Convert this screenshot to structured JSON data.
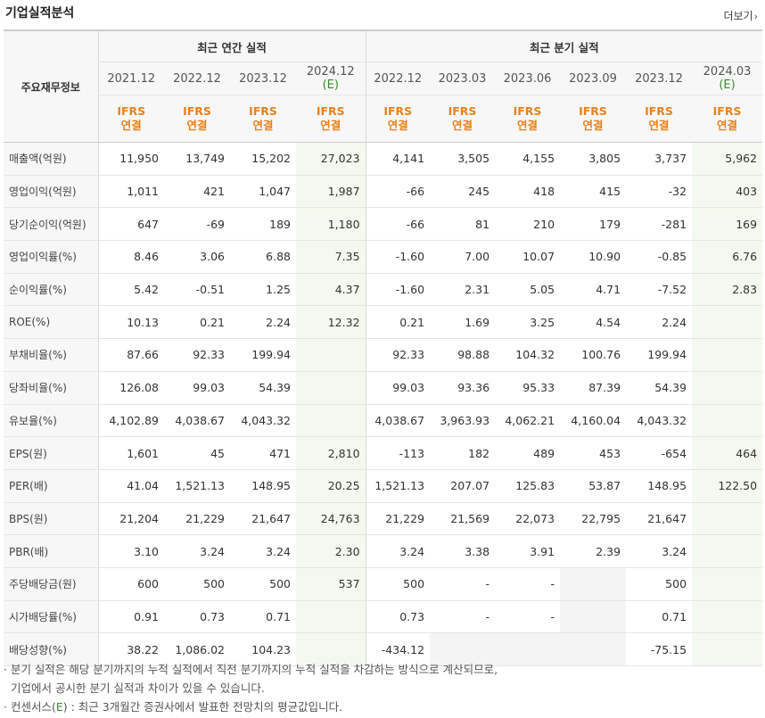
{
  "title": "기업실적분석",
  "more_label": "더보기",
  "header": {
    "corner_label": "주요재무정보",
    "annual_group": "최근 연간 실적",
    "quarter_group": "최근 분기 실적",
    "periods": [
      {
        "date": "2021.12",
        "est": ""
      },
      {
        "date": "2022.12",
        "est": ""
      },
      {
        "date": "2023.12",
        "est": ""
      },
      {
        "date": "2024.12",
        "est": "(E)"
      },
      {
        "date": "2022.12",
        "est": ""
      },
      {
        "date": "2023.03",
        "est": ""
      },
      {
        "date": "2023.06",
        "est": ""
      },
      {
        "date": "2023.09",
        "est": ""
      },
      {
        "date": "2023.12",
        "est": ""
      },
      {
        "date": "2024.03",
        "est": "(E)"
      }
    ],
    "basis_line1": "IFRS",
    "basis_line2": "연결"
  },
  "rows": [
    {
      "label": "매출액(억원)",
      "values": [
        "11,950",
        "13,749",
        "15,202",
        "27,023",
        "4,141",
        "3,505",
        "4,155",
        "3,805",
        "3,737",
        "5,962"
      ]
    },
    {
      "label": "영업이익(억원)",
      "values": [
        "1,011",
        "421",
        "1,047",
        "1,987",
        "-66",
        "245",
        "418",
        "415",
        "-32",
        "403"
      ]
    },
    {
      "label": "당기순이익(억원)",
      "values": [
        "647",
        "-69",
        "189",
        "1,180",
        "-66",
        "81",
        "210",
        "179",
        "-281",
        "169"
      ]
    },
    {
      "label": "영업이익률(%)",
      "values": [
        "8.46",
        "3.06",
        "6.88",
        "7.35",
        "-1.60",
        "7.00",
        "10.07",
        "10.90",
        "-0.85",
        "6.76"
      ]
    },
    {
      "label": "순이익률(%)",
      "values": [
        "5.42",
        "-0.51",
        "1.25",
        "4.37",
        "-1.60",
        "2.31",
        "5.05",
        "4.71",
        "-7.52",
        "2.83"
      ]
    },
    {
      "label": "ROE(%)",
      "values": [
        "10.13",
        "0.21",
        "2.24",
        "12.32",
        "0.21",
        "1.69",
        "3.25",
        "4.54",
        "2.24",
        ""
      ]
    },
    {
      "label": "부채비율(%)",
      "values": [
        "87.66",
        "92.33",
        "199.94",
        "",
        "92.33",
        "98.88",
        "104.32",
        "100.76",
        "199.94",
        ""
      ]
    },
    {
      "label": "당좌비율(%)",
      "values": [
        "126.08",
        "99.03",
        "54.39",
        "",
        "99.03",
        "93.36",
        "95.33",
        "87.39",
        "54.39",
        ""
      ]
    },
    {
      "label": "유보율(%)",
      "values": [
        "4,102.89",
        "4,038.67",
        "4,043.32",
        "",
        "4,038.67",
        "3,963.93",
        "4,062.21",
        "4,160.04",
        "4,043.32",
        ""
      ]
    },
    {
      "label": "EPS(원)",
      "values": [
        "1,601",
        "45",
        "471",
        "2,810",
        "-113",
        "182",
        "489",
        "453",
        "-654",
        "464"
      ]
    },
    {
      "label": "PER(배)",
      "values": [
        "41.04",
        "1,521.13",
        "148.95",
        "20.25",
        "1,521.13",
        "207.07",
        "125.83",
        "53.87",
        "148.95",
        "122.50"
      ]
    },
    {
      "label": "BPS(원)",
      "values": [
        "21,204",
        "21,229",
        "21,647",
        "24,763",
        "21,229",
        "21,569",
        "22,073",
        "22,795",
        "21,647",
        ""
      ]
    },
    {
      "label": "PBR(배)",
      "values": [
        "3.10",
        "3.24",
        "3.24",
        "2.30",
        "3.24",
        "3.38",
        "3.91",
        "2.39",
        "3.24",
        ""
      ]
    },
    {
      "label": "주당배당금(원)",
      "values": [
        "600",
        "500",
        "500",
        "537",
        "500",
        "-",
        "-",
        "",
        "500",
        ""
      ]
    },
    {
      "label": "시가배당률(%)",
      "values": [
        "0.91",
        "0.73",
        "0.71",
        "",
        "0.73",
        "-",
        "-",
        "",
        "0.71",
        ""
      ]
    },
    {
      "label": "배당성향(%)",
      "values": [
        "38.22",
        "1,086.02",
        "104.23",
        "",
        "-434.12",
        "",
        "",
        "",
        "-75.15",
        ""
      ]
    }
  ],
  "notes": {
    "line1": "· 분기 실적은 해당 분기까지의 누적 실적에서 직전 분기까지의 누적 실적을 차감하는 방식으로 계산되므로,",
    "line2": "기업에서 공시한 분기 실적과 차이가 있을 수 있습니다.",
    "line3_prefix": "· 컨센서스(",
    "line3_e": "E",
    "line3_suffix": ") : 최근 3개월간 증권사에서 발표한 전망치의 평균값입니다."
  },
  "colors": {
    "negative": "#e0201c",
    "basis": "#e8811b",
    "estimate_mark": "#3b8a2e",
    "estimate_bg": "#f4f9ef"
  }
}
